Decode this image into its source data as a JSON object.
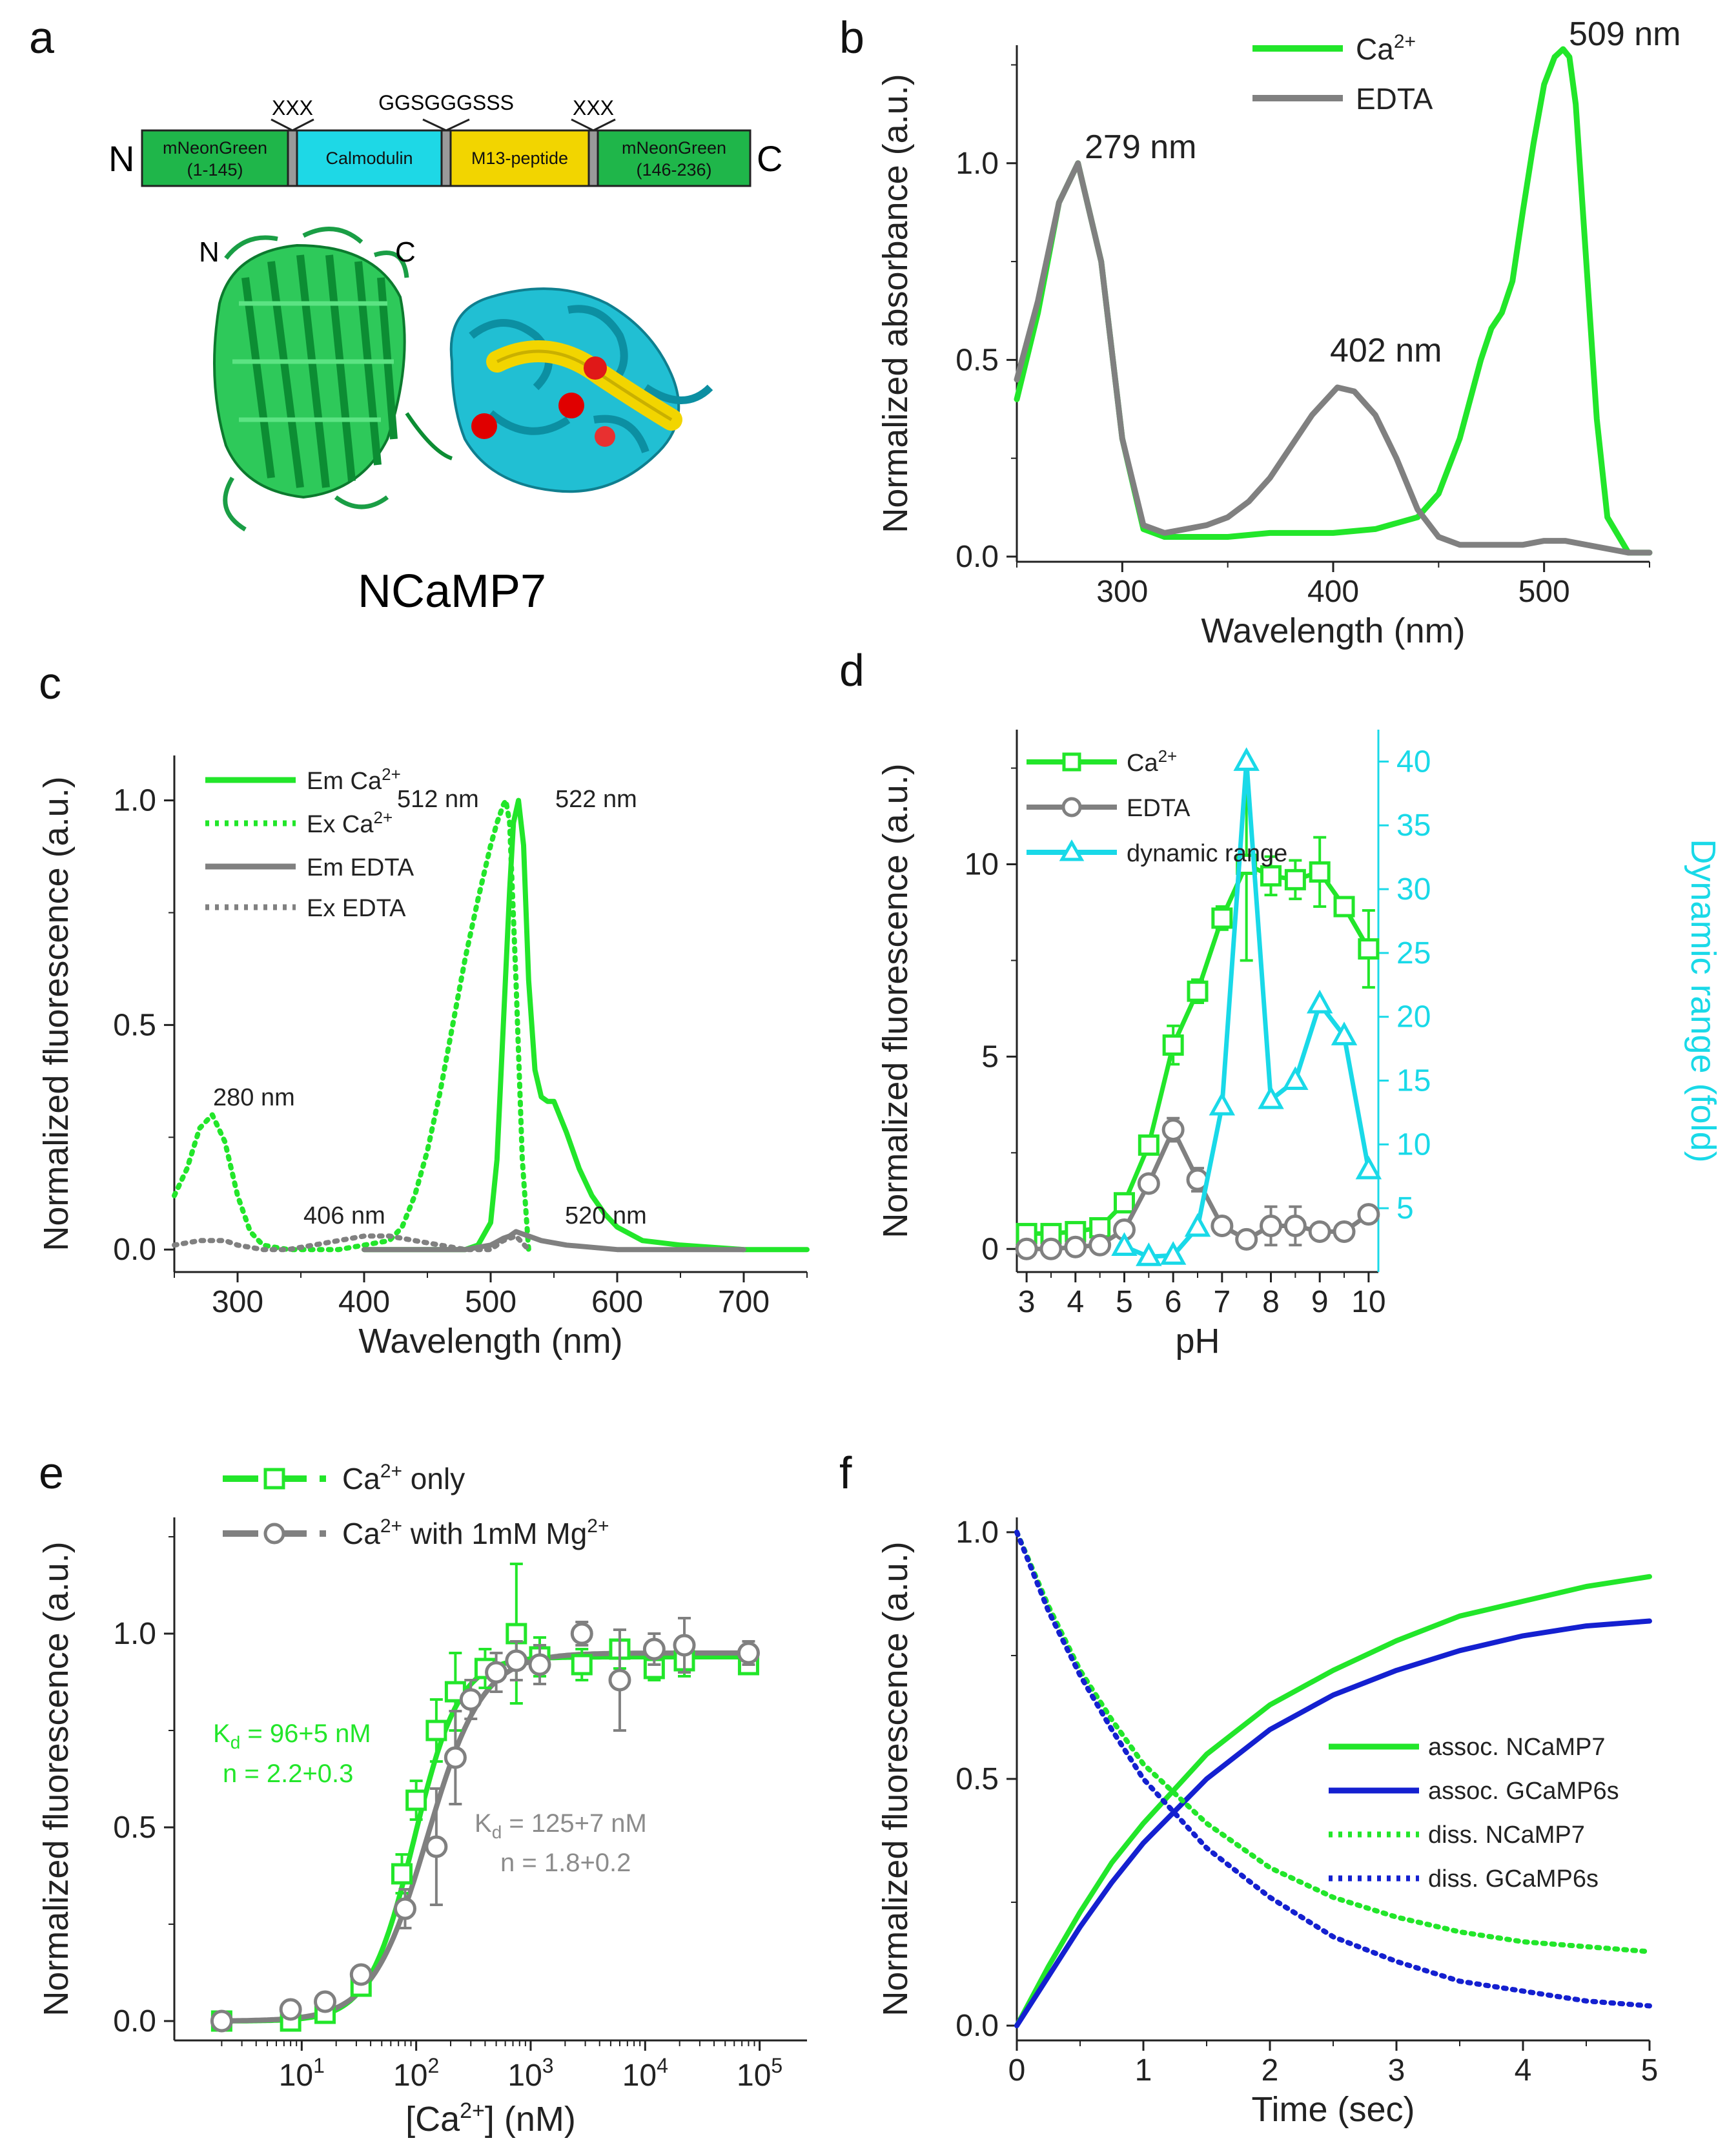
{
  "colors": {
    "green": "#22e62a",
    "gray": "#808080",
    "cyan": "#19d9e8",
    "blue": "#1420d0",
    "red": "#e00000",
    "cam": "#1ec0d6",
    "yellow": "#f0d800",
    "ngreen": "#1fb64a"
  },
  "panel_a": {
    "letter": "a",
    "title": "NCaMP7",
    "n_label": "N",
    "c_label": "C",
    "struct_n": "N",
    "struct_c": "C",
    "linker1": "XXX",
    "linker2": "GGSGGGSSS",
    "linker3": "XXX",
    "domains": [
      {
        "line1": "mNeonGreen",
        "line2": "(1-145)"
      },
      {
        "line1": "Calmodulin",
        "line2": ""
      },
      {
        "line1": "M13-peptide",
        "line2": ""
      },
      {
        "line1": "mNeonGreen",
        "line2": "(146-236)"
      }
    ]
  },
  "chart_data": [
    {
      "panel": "b",
      "type": "line",
      "xlabel": "Wavelength (nm)",
      "ylabel": "Normalized absorbance (a.u.)",
      "xlim": [
        250,
        550
      ],
      "ylim": [
        0,
        1.3
      ],
      "xticks": [
        300,
        400,
        500
      ],
      "yticks": [
        0.0,
        0.5,
        1.0
      ],
      "xtick_labels": [
        "300",
        "400",
        "500"
      ],
      "ytick_labels": [
        "0.0",
        "0.5",
        "1.0"
      ],
      "legend": [
        "Ca",
        "EDTA"
      ],
      "legend_sup": "2+",
      "annotations": [
        {
          "text": "279 nm",
          "x": 279,
          "y": 1.0
        },
        {
          "text": "402 nm",
          "x": 402,
          "y": 0.43
        },
        {
          "text": "509 nm",
          "x": 509,
          "y": 1.29
        }
      ],
      "series": [
        {
          "name": "Ca2+",
          "color": "green",
          "x": [
            250,
            260,
            270,
            279,
            290,
            300,
            310,
            320,
            330,
            350,
            370,
            400,
            420,
            440,
            450,
            460,
            470,
            475,
            480,
            485,
            490,
            495,
            500,
            505,
            509,
            512,
            515,
            520,
            525,
            530,
            540,
            550
          ],
          "y": [
            0.4,
            0.62,
            0.9,
            1.0,
            0.75,
            0.3,
            0.07,
            0.05,
            0.05,
            0.05,
            0.06,
            0.06,
            0.07,
            0.1,
            0.16,
            0.3,
            0.5,
            0.58,
            0.62,
            0.7,
            0.88,
            1.05,
            1.2,
            1.27,
            1.29,
            1.27,
            1.15,
            0.75,
            0.35,
            0.1,
            0.01,
            0.01
          ]
        },
        {
          "name": "EDTA",
          "color": "gray",
          "x": [
            250,
            260,
            270,
            279,
            290,
            300,
            310,
            320,
            330,
            340,
            350,
            360,
            370,
            380,
            390,
            402,
            410,
            420,
            430,
            440,
            450,
            460,
            470,
            480,
            490,
            500,
            510,
            520,
            530,
            540,
            550
          ],
          "y": [
            0.45,
            0.65,
            0.9,
            1.0,
            0.75,
            0.3,
            0.08,
            0.06,
            0.07,
            0.08,
            0.1,
            0.14,
            0.2,
            0.28,
            0.36,
            0.43,
            0.42,
            0.36,
            0.25,
            0.12,
            0.05,
            0.03,
            0.03,
            0.03,
            0.03,
            0.04,
            0.04,
            0.03,
            0.02,
            0.01,
            0.01
          ]
        }
      ]
    },
    {
      "panel": "c",
      "type": "line",
      "xlabel": "Wavelength (nm)",
      "ylabel": "Normalized fluorescence (a.u.)",
      "xlim": [
        250,
        750
      ],
      "ylim": [
        -0.05,
        1.1
      ],
      "xticks": [
        300,
        400,
        500,
        600,
        700
      ],
      "yticks": [
        0.0,
        0.5,
        1.0
      ],
      "xtick_labels": [
        "300",
        "400",
        "500",
        "600",
        "700"
      ],
      "ytick_labels": [
        "0.0",
        "0.5",
        "1.0"
      ],
      "legend": [
        "Em Ca",
        "Ex Ca",
        "Em EDTA",
        "Ex EDTA"
      ],
      "legend_sup": "2+",
      "annotations": [
        {
          "text": "280 nm",
          "x": 280,
          "y": 0.3
        },
        {
          "text": "406 nm",
          "x": 406,
          "y": 0.03
        },
        {
          "text": "512 nm",
          "x": 512,
          "y": 1.0
        },
        {
          "text": "522 nm",
          "x": 522,
          "y": 1.0
        },
        {
          "text": "520 nm",
          "x": 520,
          "y": 0.04
        }
      ],
      "series": [
        {
          "name": "Em Ca2+",
          "style": "solid",
          "color": "green",
          "x": [
            400,
            480,
            490,
            500,
            505,
            510,
            515,
            518,
            522,
            526,
            530,
            535,
            540,
            545,
            550,
            560,
            570,
            580,
            590,
            600,
            620,
            650,
            700,
            750
          ],
          "y": [
            0.0,
            0.0,
            0.01,
            0.06,
            0.2,
            0.5,
            0.8,
            0.95,
            1.0,
            0.9,
            0.6,
            0.4,
            0.34,
            0.33,
            0.33,
            0.26,
            0.18,
            0.12,
            0.08,
            0.05,
            0.02,
            0.01,
            0.0,
            0.0
          ]
        },
        {
          "name": "Ex Ca2+",
          "style": "dotted",
          "color": "green",
          "x": [
            250,
            260,
            270,
            280,
            290,
            300,
            310,
            320,
            340,
            360,
            380,
            400,
            420,
            430,
            440,
            450,
            460,
            470,
            480,
            490,
            500,
            505,
            510,
            512,
            515,
            520,
            525,
            530
          ],
          "y": [
            0.12,
            0.18,
            0.27,
            0.3,
            0.24,
            0.12,
            0.04,
            0.01,
            0.0,
            0.0,
            0.0,
            0.01,
            0.02,
            0.05,
            0.12,
            0.22,
            0.35,
            0.5,
            0.65,
            0.78,
            0.9,
            0.95,
            0.99,
            1.0,
            0.95,
            0.6,
            0.2,
            0.0
          ]
        },
        {
          "name": "Em EDTA",
          "style": "solid",
          "color": "gray",
          "x": [
            400,
            480,
            500,
            510,
            515,
            520,
            525,
            530,
            540,
            560,
            580,
            600,
            650,
            700
          ],
          "y": [
            0.0,
            0.0,
            0.01,
            0.025,
            0.03,
            0.04,
            0.035,
            0.03,
            0.02,
            0.01,
            0.005,
            0.0,
            0.0,
            0.0
          ]
        },
        {
          "name": "Ex EDTA",
          "style": "dotted",
          "color": "gray",
          "x": [
            250,
            270,
            280,
            290,
            300,
            320,
            340,
            360,
            380,
            400,
            406,
            420,
            440,
            460,
            480,
            500,
            510,
            520,
            530
          ],
          "y": [
            0.01,
            0.02,
            0.02,
            0.02,
            0.01,
            0.0,
            0.0,
            0.01,
            0.02,
            0.03,
            0.03,
            0.03,
            0.02,
            0.01,
            0.0,
            0.0,
            0.02,
            0.03,
            0.0
          ]
        }
      ]
    },
    {
      "panel": "d",
      "type": "line",
      "xlabel": "pH",
      "ylabel": "Normalized fluorescence (a.u.)",
      "y2label": "Dynamic range (fold)",
      "xlim": [
        2.8,
        10.2
      ],
      "ylim": [
        -0.6,
        13.5
      ],
      "y2lim": [
        0,
        42.5
      ],
      "xticks": [
        3,
        4,
        5,
        6,
        7,
        8,
        9,
        10
      ],
      "yticks": [
        0,
        5,
        10
      ],
      "y2ticks": [
        5,
        10,
        15,
        20,
        25,
        30,
        35,
        40
      ],
      "xtick_labels": [
        "3",
        "4",
        "5",
        "6",
        "7",
        "8",
        "9",
        "10"
      ],
      "ytick_labels": [
        "0",
        "5",
        "10"
      ],
      "y2tick_labels": [
        "5",
        "10",
        "15",
        "20",
        "25",
        "30",
        "35",
        "40"
      ],
      "legend": [
        "Ca",
        "EDTA",
        "dynamic range"
      ],
      "legend_sup": "2+",
      "series": [
        {
          "name": "Ca2+",
          "axis": "left",
          "color": "green",
          "marker": "square",
          "x": [
            3,
            3.5,
            4,
            4.5,
            5,
            5.5,
            6,
            6.5,
            7,
            7.5,
            8,
            8.5,
            9,
            9.5,
            10
          ],
          "y": [
            0.4,
            0.4,
            0.45,
            0.55,
            1.2,
            2.7,
            5.3,
            6.7,
            8.6,
            10.0,
            9.7,
            9.6,
            9.8,
            8.9,
            7.8
          ],
          "err": [
            0.1,
            0.1,
            0.1,
            0.1,
            0.2,
            0.2,
            0.5,
            0.3,
            0.3,
            2.5,
            0.5,
            0.5,
            0.9,
            0.2,
            1.0
          ]
        },
        {
          "name": "EDTA",
          "axis": "left",
          "color": "gray",
          "marker": "circle",
          "x": [
            3,
            3.5,
            4,
            4.5,
            5,
            5.5,
            6,
            6.5,
            7,
            7.5,
            8,
            8.5,
            9,
            9.5,
            10
          ],
          "y": [
            0.0,
            0.0,
            0.05,
            0.1,
            0.5,
            1.7,
            3.1,
            1.8,
            0.6,
            0.25,
            0.6,
            0.6,
            0.45,
            0.45,
            0.9
          ],
          "err": [
            0.05,
            0.05,
            0.05,
            0.05,
            0.1,
            0.2,
            0.3,
            0.3,
            0.2,
            0.2,
            0.5,
            0.5,
            0.2,
            0.2,
            0.2
          ]
        },
        {
          "name": "dynamic range",
          "axis": "right",
          "color": "cyan",
          "marker": "triangle",
          "x": [
            5,
            5.5,
            6,
            6.5,
            7,
            7.5,
            8,
            8.5,
            9,
            9.5,
            10
          ],
          "y": [
            2,
            1.2,
            1.3,
            3.5,
            13,
            40,
            13.5,
            15,
            21,
            18.5,
            8
          ]
        }
      ]
    },
    {
      "panel": "e",
      "type": "scatter",
      "xlabel_pre": "[Ca",
      "xlabel_sup": "2+",
      "xlabel_post": "] (nM)",
      "ylabel": "Normalized fluorescence (a.u.)",
      "xscale": "log",
      "xlim": [
        1,
        200000
      ],
      "ylim": [
        -0.05,
        1.3
      ],
      "xticks": [
        10,
        100,
        1000,
        10000,
        100000
      ],
      "xtick_exps": [
        "1",
        "2",
        "3",
        "4",
        "5"
      ],
      "xtick_base": "10",
      "yticks": [
        0.0,
        0.5,
        1.0
      ],
      "ytick_labels": [
        "0.0",
        "0.5",
        "1.0"
      ],
      "legend": [
        {
          "pre": "Ca",
          "sup": "2+",
          "post": " only"
        },
        {
          "pre": "Ca",
          "sup": "2+",
          "post": " with 1mM Mg",
          "sup2": "2+"
        }
      ],
      "fit_labels": [
        {
          "kd_pre": "K",
          "kd_sub": "d",
          "kd_post": " = 96+5 nM",
          "n": "n = 2.2+0.3",
          "color": "green"
        },
        {
          "kd_pre": "K",
          "kd_sub": "d",
          "kd_post": " = 125+7 nM",
          "n": "n = 1.8+0.2",
          "color": "gray"
        }
      ],
      "fits": [
        {
          "name": "fit Ca2+ only",
          "color": "green",
          "kd": 96,
          "n": 2.2,
          "max": 0.94
        },
        {
          "name": "fit Mg",
          "color": "gray",
          "kd": 125,
          "n": 1.8,
          "max": 0.95
        }
      ],
      "series": [
        {
          "name": "Ca2+ only",
          "color": "green",
          "marker": "square",
          "x": [
            2,
            8,
            16,
            33,
            75,
            100,
            150,
            220,
            400,
            750,
            1200,
            2800,
            6000,
            12000,
            22000,
            80000
          ],
          "y": [
            0.0,
            0.0,
            0.02,
            0.09,
            0.38,
            0.57,
            0.75,
            0.85,
            0.91,
            1.0,
            0.94,
            0.92,
            0.96,
            0.91,
            0.93,
            0.92
          ],
          "err": [
            0.01,
            0.01,
            0.02,
            0.02,
            0.05,
            0.05,
            0.08,
            0.1,
            0.05,
            0.18,
            0.05,
            0.04,
            0.05,
            0.03,
            0.04,
            0.02
          ]
        },
        {
          "name": "Ca2+ with 1mM Mg2+",
          "color": "gray",
          "marker": "circle",
          "x": [
            2,
            8,
            16,
            33,
            80,
            150,
            220,
            300,
            500,
            750,
            1200,
            2800,
            6000,
            12000,
            22000,
            80000
          ],
          "y": [
            0.0,
            0.03,
            0.05,
            0.12,
            0.29,
            0.45,
            0.68,
            0.83,
            0.9,
            0.93,
            0.92,
            1.0,
            0.88,
            0.96,
            0.97,
            0.95
          ],
          "err": [
            0.01,
            0.02,
            0.02,
            0.02,
            0.05,
            0.15,
            0.12,
            0.05,
            0.05,
            0.05,
            0.05,
            0.03,
            0.13,
            0.04,
            0.07,
            0.03
          ]
        }
      ]
    },
    {
      "panel": "f",
      "type": "line",
      "xlabel": "Time (sec)",
      "ylabel": "Normalized fluorescence (a.u.)",
      "xlim": [
        0,
        5
      ],
      "ylim": [
        -0.03,
        1.03
      ],
      "xticks": [
        0,
        1,
        2,
        3,
        4,
        5
      ],
      "yticks": [
        0.0,
        0.5,
        1.0
      ],
      "xtick_labels": [
        "0",
        "1",
        "2",
        "3",
        "4",
        "5"
      ],
      "ytick_labels": [
        "0.0",
        "0.5",
        "1.0"
      ],
      "legend": [
        "assoc. NCaMP7",
        "assoc. GCaMP6s",
        "diss. NCaMP7",
        "diss. GCaMP6s"
      ],
      "series": [
        {
          "name": "assoc. NCaMP7",
          "style": "solid",
          "color": "green",
          "x": [
            0,
            0.25,
            0.5,
            0.75,
            1,
            1.5,
            2,
            2.5,
            3,
            3.5,
            4,
            4.5,
            5
          ],
          "y": [
            0.0,
            0.12,
            0.23,
            0.33,
            0.41,
            0.55,
            0.65,
            0.72,
            0.78,
            0.83,
            0.86,
            0.89,
            0.91
          ]
        },
        {
          "name": "assoc. GCaMP6s",
          "style": "solid",
          "color": "blue",
          "x": [
            0,
            0.25,
            0.5,
            0.75,
            1,
            1.5,
            2,
            2.5,
            3,
            3.5,
            4,
            4.5,
            5
          ],
          "y": [
            0.0,
            0.1,
            0.2,
            0.29,
            0.37,
            0.5,
            0.6,
            0.67,
            0.72,
            0.76,
            0.79,
            0.81,
            0.82
          ]
        },
        {
          "name": "diss. NCaMP7",
          "style": "dotted",
          "color": "green",
          "x": [
            0,
            0.25,
            0.5,
            0.75,
            1,
            1.5,
            2,
            2.5,
            3,
            3.5,
            4,
            4.5,
            5
          ],
          "y": [
            1.0,
            0.85,
            0.72,
            0.62,
            0.53,
            0.41,
            0.32,
            0.26,
            0.22,
            0.19,
            0.17,
            0.16,
            0.15
          ]
        },
        {
          "name": "diss. GCaMP6s",
          "style": "dotted",
          "color": "blue",
          "x": [
            0,
            0.25,
            0.5,
            0.75,
            1,
            1.5,
            2,
            2.5,
            3,
            3.5,
            4,
            4.5,
            5
          ],
          "y": [
            1.0,
            0.84,
            0.71,
            0.6,
            0.5,
            0.36,
            0.26,
            0.18,
            0.13,
            0.09,
            0.07,
            0.05,
            0.04
          ]
        }
      ]
    }
  ]
}
